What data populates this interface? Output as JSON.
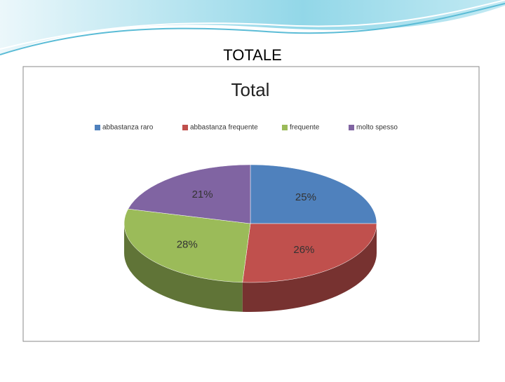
{
  "slide_title": "TOTALE",
  "chart_data": {
    "type": "pie",
    "title": "Total",
    "categories": [
      "abbastanza raro",
      "abbastanza frequente",
      "frequente",
      "molto spesso"
    ],
    "values": [
      25,
      26,
      28,
      21
    ],
    "value_labels": [
      "25%",
      "26%",
      "28%",
      "21%"
    ],
    "colors": [
      "#4f81bd",
      "#c0504d",
      "#9bbb59",
      "#8064a2"
    ],
    "legend": "top"
  }
}
